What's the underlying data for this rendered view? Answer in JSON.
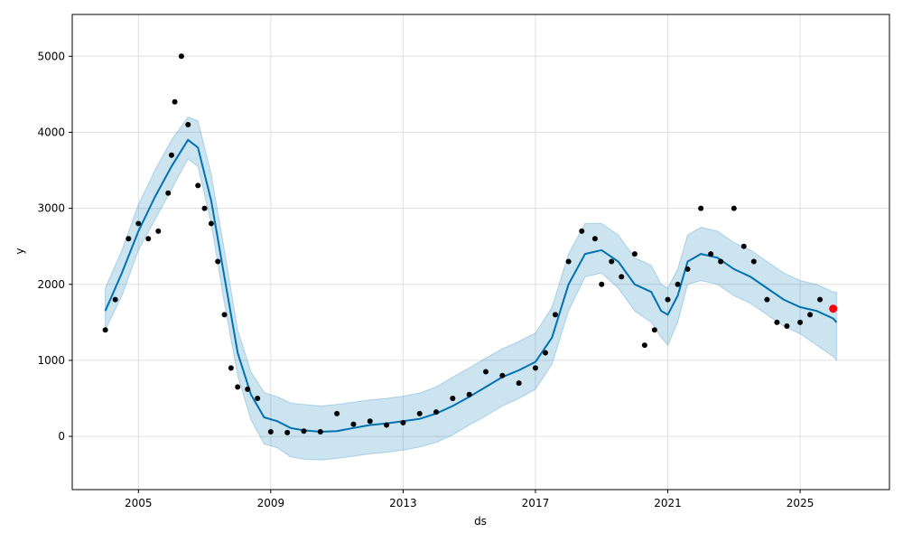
{
  "chart_data": {
    "type": "line",
    "xlabel": "ds",
    "ylabel": "y",
    "xlim": [
      2003.0,
      2027.7
    ],
    "ylim": [
      -700,
      5550
    ],
    "x_ticks": [
      2005,
      2009,
      2013,
      2017,
      2021,
      2025
    ],
    "x_tick_labels": [
      "2005",
      "2009",
      "2013",
      "2017",
      "2021",
      "2025"
    ],
    "y_ticks": [
      0,
      1000,
      2000,
      3000,
      4000,
      5000
    ],
    "y_tick_labels": [
      "0",
      "1000",
      "2000",
      "3000",
      "4000",
      "5000"
    ],
    "grid": true,
    "colors": {
      "observed": "#000000",
      "forecast": "#0072B2",
      "uncertainty_band": "#0072B2",
      "last_point": "#ff0000"
    },
    "series": [
      {
        "role": "forecast",
        "x": [
          2004.0,
          2004.5,
          2005.0,
          2005.5,
          2006.0,
          2006.5,
          2006.8,
          2007.2,
          2007.6,
          2008.0,
          2008.4,
          2008.8,
          2009.2,
          2009.6,
          2010.0,
          2010.5,
          2011.0,
          2011.5,
          2012.0,
          2012.5,
          2013.0,
          2013.5,
          2014.0,
          2014.5,
          2015.0,
          2015.5,
          2016.0,
          2016.5,
          2017.0,
          2017.5,
          2018.0,
          2018.5,
          2019.0,
          2019.5,
          2020.0,
          2020.5,
          2020.8,
          2021.0,
          2021.3,
          2021.6,
          2022.0,
          2022.5,
          2023.0,
          2023.5,
          2024.0,
          2024.5,
          2025.0,
          2025.5,
          2026.0,
          2026.1
        ],
        "yhat": [
          1650,
          2150,
          2700,
          3150,
          3550,
          3900,
          3800,
          3100,
          2100,
          1100,
          550,
          250,
          200,
          110,
          80,
          60,
          70,
          110,
          150,
          170,
          200,
          230,
          300,
          400,
          520,
          650,
          780,
          870,
          980,
          1300,
          2000,
          2400,
          2450,
          2300,
          2000,
          1900,
          1650,
          1600,
          1850,
          2300,
          2400,
          2350,
          2200,
          2100,
          1950,
          1800,
          1700,
          1650,
          1550,
          1500
        ],
        "lower": [
          1400,
          1850,
          2450,
          2850,
          3250,
          3650,
          3550,
          2800,
          1750,
          800,
          220,
          -100,
          -150,
          -270,
          -300,
          -310,
          -290,
          -260,
          -230,
          -210,
          -180,
          -140,
          -80,
          20,
          150,
          270,
          400,
          500,
          620,
          950,
          1650,
          2100,
          2150,
          1950,
          1650,
          1500,
          1300,
          1200,
          1500,
          2000,
          2050,
          2000,
          1850,
          1750,
          1600,
          1450,
          1350,
          1200,
          1050,
          1000
        ],
        "upper": [
          1950,
          2450,
          3050,
          3500,
          3900,
          4200,
          4150,
          3450,
          2450,
          1400,
          850,
          580,
          520,
          440,
          420,
          400,
          420,
          450,
          480,
          500,
          530,
          570,
          650,
          780,
          900,
          1030,
          1150,
          1250,
          1360,
          1700,
          2400,
          2800,
          2800,
          2650,
          2350,
          2250,
          2000,
          1950,
          2200,
          2650,
          2750,
          2700,
          2550,
          2450,
          2300,
          2150,
          2050,
          2000,
          1900,
          1900
        ]
      },
      {
        "role": "observed",
        "x": [
          2004.0,
          2004.3,
          2004.7,
          2005.0,
          2005.3,
          2005.6,
          2005.9,
          2006.0,
          2006.1,
          2006.3,
          2006.5,
          2006.8,
          2007.0,
          2007.2,
          2007.4,
          2007.6,
          2007.8,
          2008.0,
          2008.3,
          2008.6,
          2009.0,
          2009.5,
          2010.0,
          2010.5,
          2011.0,
          2011.5,
          2012.0,
          2012.5,
          2013.0,
          2013.5,
          2014.0,
          2014.5,
          2015.0,
          2015.5,
          2016.0,
          2016.5,
          2017.0,
          2017.3,
          2017.6,
          2018.0,
          2018.4,
          2018.8,
          2019.0,
          2019.3,
          2019.6,
          2020.0,
          2020.3,
          2020.6,
          2021.0,
          2021.3,
          2021.6,
          2022.0,
          2022.3,
          2022.6,
          2023.0,
          2023.3,
          2023.6,
          2024.0,
          2024.3,
          2024.6,
          2025.0,
          2025.3,
          2025.6,
          2026.0
        ],
        "y": [
          1400,
          1800,
          2600,
          2800,
          2600,
          2700,
          3200,
          3700,
          4400,
          5000,
          4100,
          3300,
          3000,
          2800,
          2300,
          1600,
          900,
          650,
          620,
          500,
          60,
          50,
          70,
          60,
          300,
          160,
          200,
          150,
          180,
          300,
          320,
          500,
          550,
          850,
          800,
          700,
          900,
          1100,
          1600,
          2300,
          2700,
          2600,
          2000,
          2300,
          2100,
          2400,
          1200,
          1400,
          1800,
          2000,
          2200,
          3000,
          2400,
          2300,
          3000,
          2500,
          2300,
          1800,
          1500,
          1450,
          1500,
          1600,
          1800,
          1680
        ]
      }
    ],
    "last_point": {
      "x": 2026.0,
      "y": 1680
    }
  }
}
